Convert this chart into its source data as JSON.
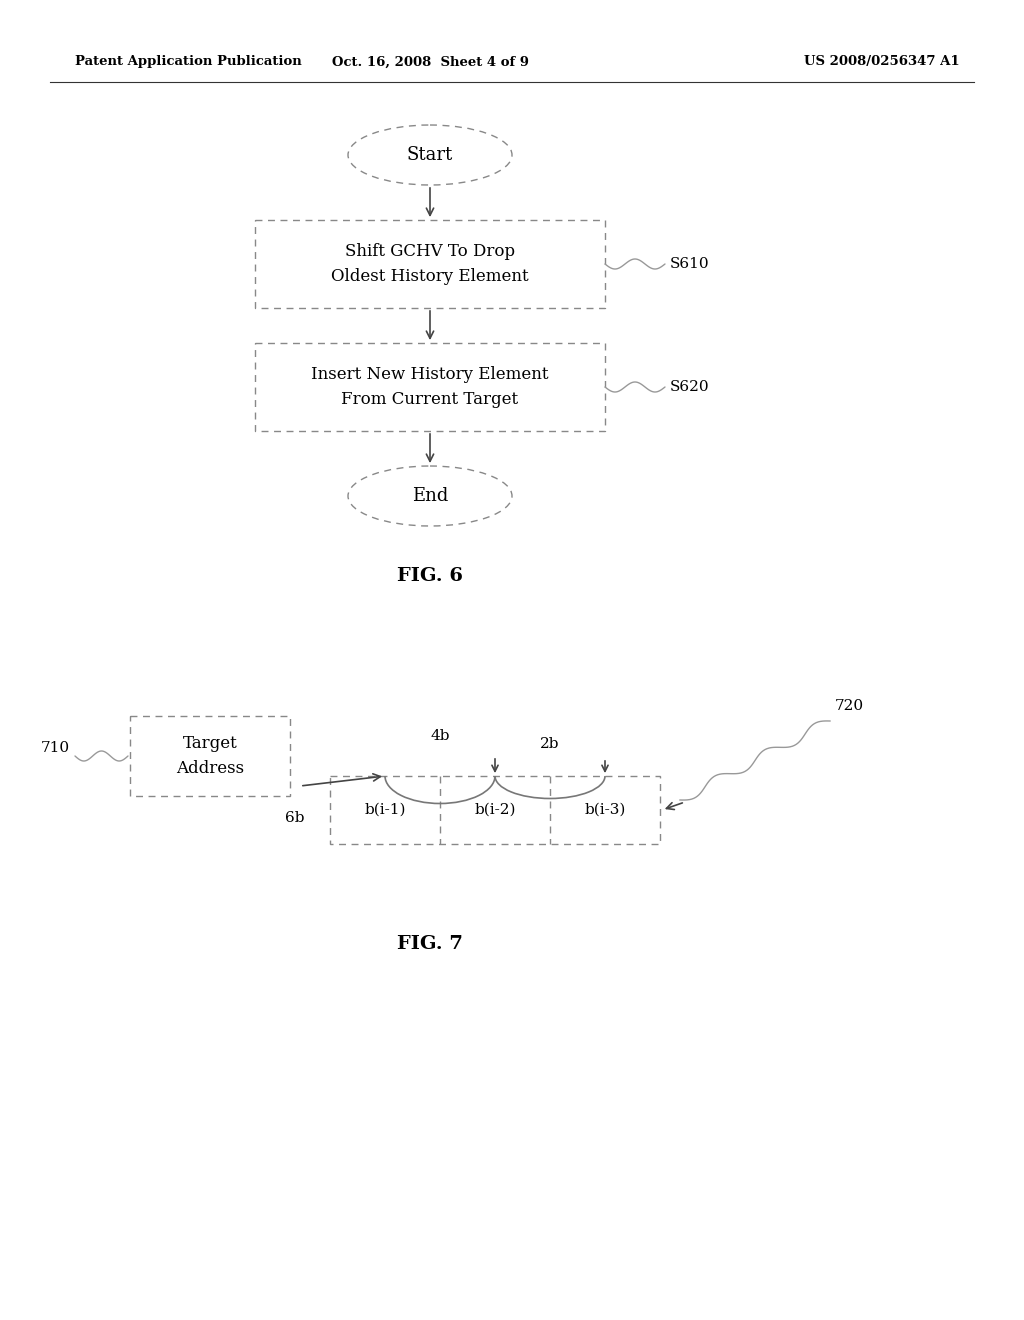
{
  "bg_color": "#ffffff",
  "header_left": "Patent Application Publication",
  "header_mid": "Oct. 16, 2008  Sheet 4 of 9",
  "header_right": "US 2008/0256347 A1",
  "fig6": {
    "title": "FIG. 6",
    "start_label": "Start",
    "end_label": "End",
    "box1_text": "Shift GCHV To Drop\nOldest History Element",
    "box2_text": "Insert New History Element\nFrom Current Target",
    "label1": "S610",
    "label2": "S620"
  },
  "fig7": {
    "title": "FIG. 7",
    "target_box_text": "Target\nAddress",
    "target_box_label": "710",
    "label720": "720",
    "cells": [
      "b(i-1)",
      "b(i-2)",
      "b(i-3)"
    ],
    "arc_labels": [
      "6b",
      "4b",
      "2b"
    ]
  }
}
